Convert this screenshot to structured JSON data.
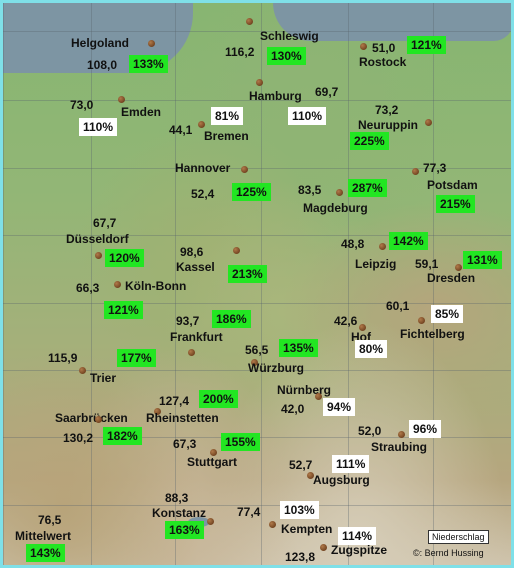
{
  "colors": {
    "high": "#22e622",
    "low": "#ffffff",
    "border": "#7fe0e8"
  },
  "legend": "Niederschlag",
  "credit": "©: Bernd Hussing",
  "stations": [
    {
      "city": "Helgoland",
      "value": "108,0",
      "percent": "133%",
      "level": "high"
    },
    {
      "city": "Schleswig",
      "value": "116,2",
      "percent": "130%",
      "level": "high"
    },
    {
      "city": "Rostock",
      "value": "51,0",
      "percent": "121%",
      "level": "high"
    },
    {
      "city": "Emden",
      "value": "73,0",
      "percent": "110%",
      "level": "low"
    },
    {
      "city": "Hamburg",
      "value": "69,7",
      "percent": "110%",
      "level": "low"
    },
    {
      "city": "Bremen",
      "value": "44,1",
      "percent": "81%",
      "level": "low"
    },
    {
      "city": "Neuruppin",
      "value": "73,2",
      "percent": "225%",
      "level": "high"
    },
    {
      "city": "Hannover",
      "value": "52,4",
      "percent": "125%",
      "level": "high"
    },
    {
      "city": "Potsdam",
      "value": "77,3",
      "percent": "215%",
      "level": "high"
    },
    {
      "city": "Magdeburg",
      "value": "83,5",
      "percent": "287%",
      "level": "high"
    },
    {
      "city": "Düsseldorf",
      "value": "67,7",
      "percent": "120%",
      "level": "high"
    },
    {
      "city": "Kassel",
      "value": "98,6",
      "percent": "213%",
      "level": "high"
    },
    {
      "city": "Leipzig",
      "value": "48,8",
      "percent": "142%",
      "level": "high"
    },
    {
      "city": "Dresden",
      "value": "59,1",
      "percent": "131%",
      "level": "high"
    },
    {
      "city": "Köln-Bonn",
      "value": "66,3",
      "percent": "121%",
      "level": "high"
    },
    {
      "city": "Frankfurt",
      "value": "93,7",
      "percent": "186%",
      "level": "high"
    },
    {
      "city": "Fichtelberg",
      "value": "60,1",
      "percent": "85%",
      "level": "low"
    },
    {
      "city": "Hof",
      "value": "42,6",
      "percent": "80%",
      "level": "low"
    },
    {
      "city": "Würzburg",
      "value": "56,5",
      "percent": "135%",
      "level": "high"
    },
    {
      "city": "Trier",
      "value": "115,9",
      "percent": "177%",
      "level": "high"
    },
    {
      "city": "Rheinstetten",
      "value": "127,4",
      "percent": "200%",
      "level": "high"
    },
    {
      "city": "Nürnberg",
      "value": "42,0",
      "percent": "94%",
      "level": "low"
    },
    {
      "city": "Saarbrücken",
      "value": "130,2",
      "percent": "182%",
      "level": "high"
    },
    {
      "city": "Straubing",
      "value": "52,0",
      "percent": "96%",
      "level": "low"
    },
    {
      "city": "Stuttgart",
      "value": "67,3",
      "percent": "155%",
      "level": "high"
    },
    {
      "city": "Augsburg",
      "value": "52,7",
      "percent": "111%",
      "level": "low"
    },
    {
      "city": "Konstanz",
      "value": "88,3",
      "percent": "163%",
      "level": "high"
    },
    {
      "city": "Kempten",
      "value": "77,4",
      "percent": "103%",
      "level": "low"
    },
    {
      "city": "Zugspitze",
      "value": "123,8",
      "percent": "114%",
      "level": "low"
    },
    {
      "city": "Mittelwert",
      "value": "76,5",
      "percent": "143%",
      "level": "high"
    }
  ]
}
